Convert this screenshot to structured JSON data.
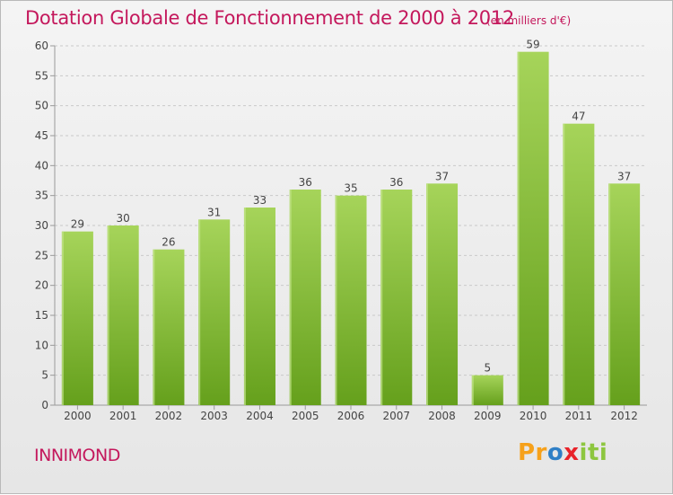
{
  "header": {
    "title": "Dotation Globale de Fonctionnement de 2000 à 2012",
    "unit": "(en milliers d'€)"
  },
  "footer": {
    "commune": "INNIMOND",
    "logo_parts": [
      "Pr",
      "o",
      "x",
      "iti"
    ]
  },
  "colors": {
    "title": "#c4185c",
    "bar_light": "#a6d45a",
    "bar_dark": "#65a01c",
    "grid": "#c9c9c9",
    "axis": "#9a9a9a",
    "text": "#444444"
  },
  "chart_data": {
    "type": "bar",
    "title": "Dotation Globale de Fonctionnement de 2000 à 2012",
    "subtitle": "(en milliers d'€)",
    "xlabel": "",
    "ylabel": "",
    "categories": [
      "2000",
      "2001",
      "2002",
      "2003",
      "2004",
      "2005",
      "2006",
      "2007",
      "2008",
      "2009",
      "2010",
      "2011",
      "2012"
    ],
    "values": [
      29,
      30,
      26,
      31,
      33,
      36,
      35,
      36,
      37,
      5,
      59,
      47,
      37
    ],
    "ylim": [
      0,
      60
    ],
    "yticks": [
      0,
      5,
      10,
      15,
      20,
      25,
      30,
      35,
      40,
      45,
      50,
      55,
      60
    ],
    "grid": true,
    "data_labels": true
  }
}
